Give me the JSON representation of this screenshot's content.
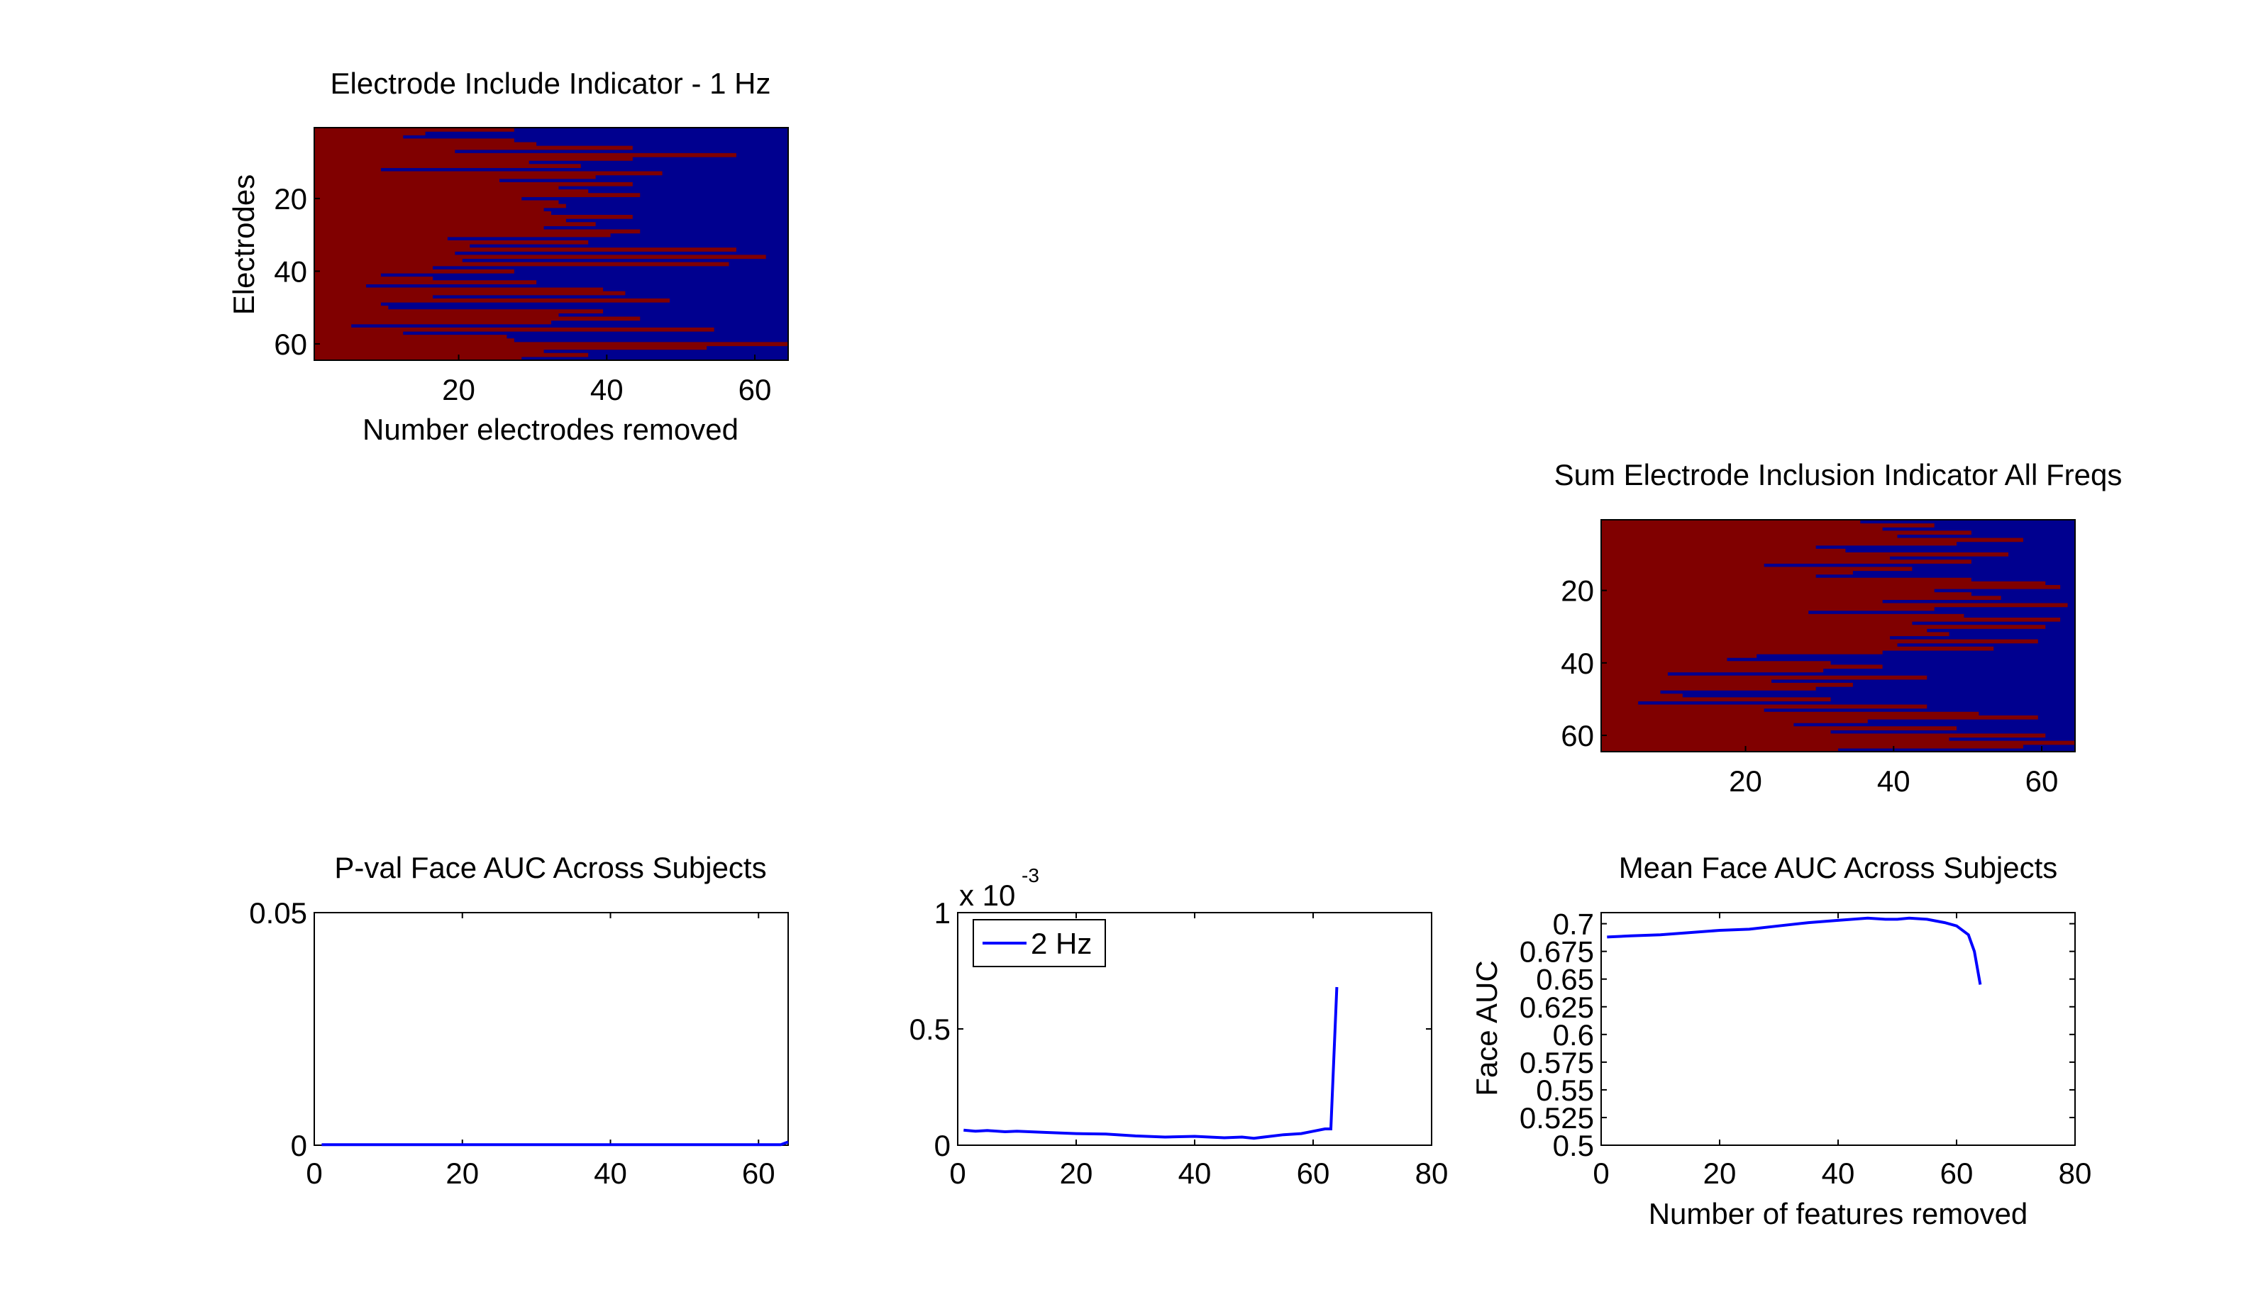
{
  "colors": {
    "heatmap_low": "#00008f",
    "heatmap_high": "#800000",
    "line": "#0000ff",
    "axis": "#000000",
    "background": "#ffffff"
  },
  "chart_data": [
    {
      "id": "heat1",
      "type": "heatmap",
      "title": "Electrode Include Indicator - 1 Hz",
      "xlabel": "Number electrodes removed",
      "ylabel": "Electrodes",
      "xlim": [
        0.5,
        64.5
      ],
      "ylim": [
        0.5,
        64.5
      ],
      "xticks": [
        20,
        40,
        60
      ],
      "yticks": [
        20,
        40,
        60
      ],
      "rows": 64,
      "columns": 64,
      "values_description": "1 = included (red), 0 = removed (blue)",
      "included_until": [
        27,
        15,
        12,
        27,
        30,
        43,
        19,
        57,
        43,
        29,
        36,
        9,
        47,
        38,
        25,
        43,
        33,
        37,
        44,
        28,
        33,
        34,
        31,
        32,
        43,
        34,
        38,
        31,
        44,
        40,
        18,
        37,
        21,
        57,
        19,
        61,
        20,
        56,
        16,
        27,
        9,
        16,
        30,
        7,
        39,
        42,
        16,
        48,
        9,
        10,
        39,
        33,
        44,
        32,
        5,
        54,
        12,
        26,
        27,
        64,
        53,
        31,
        37,
        28
      ]
    },
    {
      "id": "heat2",
      "type": "heatmap",
      "title": "Sum Electrode Inclusion Indicator All Freqs",
      "xlabel": "",
      "ylabel": "",
      "xlim": [
        0.5,
        64.5
      ],
      "ylim": [
        0.5,
        64.5
      ],
      "xticks": [
        20,
        40,
        60
      ],
      "yticks": [
        20,
        40,
        60
      ],
      "rows": 64,
      "columns": 64,
      "values_description": "1 = included (red), 0 = removed (blue)",
      "included_until": [
        35,
        45,
        38,
        50,
        40,
        57,
        48,
        29,
        33,
        55,
        39,
        50,
        22,
        42,
        34,
        29,
        50,
        60,
        62,
        45,
        50,
        54,
        38,
        63,
        45,
        28,
        49,
        62,
        42,
        60,
        44,
        47,
        39,
        59,
        40,
        53,
        38,
        21,
        17,
        31,
        38,
        30,
        9,
        44,
        23,
        34,
        29,
        8,
        11,
        31,
        5,
        44,
        22,
        51,
        59,
        36,
        26,
        48,
        31,
        60,
        47,
        64,
        57,
        32
      ]
    },
    {
      "id": "pval",
      "type": "line",
      "title": "P-val Face AUC Across Subjects",
      "xlabel": "",
      "ylabel": "",
      "xlim": [
        0,
        64
      ],
      "ylim": [
        0,
        0.05
      ],
      "xticks": [
        0,
        20,
        40,
        60
      ],
      "yticks": [
        0,
        0.05
      ],
      "ytick_labels": [
        "0",
        "0.05"
      ],
      "series": [
        {
          "x": [
            1,
            10,
            20,
            30,
            40,
            50,
            60,
            63,
            64
          ],
          "y": [
            0.0001,
            0.0001,
            0.0001,
            0.0001,
            0.0001,
            0.0001,
            0.0001,
            0.0001,
            0.0007
          ]
        }
      ]
    },
    {
      "id": "pval2hz",
      "type": "line",
      "title": "",
      "xlabel": "",
      "ylabel": "",
      "exponent_label": "x 10",
      "exponent_power": "-3",
      "xlim": [
        0,
        80
      ],
      "ylim": [
        0,
        1
      ],
      "xticks": [
        0,
        20,
        40,
        60,
        80
      ],
      "yticks": [
        0,
        0.5,
        1
      ],
      "ytick_labels": [
        "0",
        "0.5",
        "1"
      ],
      "series": [
        {
          "name": "2 Hz",
          "x": [
            1,
            3,
            5,
            8,
            10,
            15,
            20,
            25,
            30,
            35,
            40,
            45,
            48,
            50,
            55,
            58,
            60,
            62,
            63,
            64
          ],
          "y": [
            0.065,
            0.06,
            0.063,
            0.058,
            0.06,
            0.055,
            0.05,
            0.048,
            0.04,
            0.035,
            0.038,
            0.032,
            0.035,
            0.03,
            0.045,
            0.05,
            0.06,
            0.07,
            0.07,
            0.68
          ]
        }
      ],
      "legend": {
        "position": "top-left"
      }
    },
    {
      "id": "meanauc",
      "type": "line",
      "title": "Mean Face AUC Across Subjects",
      "xlabel": "Number of features removed",
      "ylabel": "Face AUC",
      "xlim": [
        0,
        80
      ],
      "ylim": [
        0.5,
        0.71
      ],
      "xticks": [
        0,
        20,
        40,
        60,
        80
      ],
      "yticks": [
        0.5,
        0.525,
        0.55,
        0.575,
        0.6,
        0.625,
        0.65,
        0.675,
        0.7
      ],
      "ytick_labels": [
        "0.5",
        "0.525",
        "0.55",
        "0.575",
        "0.6",
        "0.625",
        "0.65",
        "0.675",
        "0.7"
      ],
      "series": [
        {
          "x": [
            1,
            5,
            10,
            15,
            20,
            25,
            30,
            35,
            40,
            45,
            48,
            50,
            52,
            55,
            58,
            60,
            62,
            63,
            64
          ],
          "y": [
            0.688,
            0.689,
            0.69,
            0.692,
            0.694,
            0.695,
            0.698,
            0.701,
            0.703,
            0.705,
            0.704,
            0.704,
            0.705,
            0.704,
            0.701,
            0.698,
            0.69,
            0.675,
            0.645
          ]
        }
      ]
    }
  ]
}
